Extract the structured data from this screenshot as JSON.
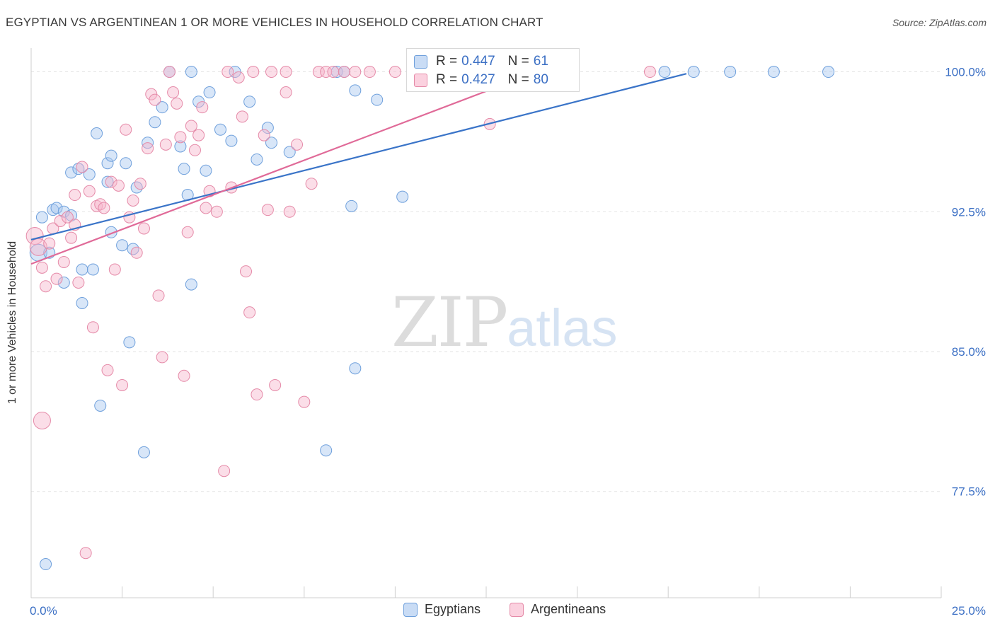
{
  "header": {
    "title": "EGYPTIAN VS ARGENTINEAN 1 OR MORE VEHICLES IN HOUSEHOLD CORRELATION CHART",
    "source": "Source: ZipAtlas.com"
  },
  "watermark": {
    "zip": "ZIP",
    "atlas": "atlas"
  },
  "stats": [
    {
      "r_label": "R =",
      "r_value": "0.447",
      "n_label": "N =",
      "n_value": "61",
      "color": "#a8c8f0"
    },
    {
      "r_label": "R =",
      "r_value": "0.427",
      "n_label": "N =",
      "n_value": "80",
      "color": "#f7b6cb"
    }
  ],
  "legend": [
    {
      "label": "Egyptians",
      "color": "#a8c8f0"
    },
    {
      "label": "Argentineans",
      "color": "#f7b6cb"
    }
  ],
  "chart_data": {
    "type": "scatter",
    "title": "EGYPTIAN VS ARGENTINEAN 1 OR MORE VEHICLES IN HOUSEHOLD CORRELATION CHART",
    "xlabel": "",
    "ylabel": "1 or more Vehicles in Household",
    "xlim": [
      0,
      25
    ],
    "ylim": [
      71.8,
      101.5
    ],
    "x_tick_labels": [
      "0.0%",
      "25.0%"
    ],
    "y_ticks": [
      77.5,
      85.0,
      92.5,
      100.0
    ],
    "y_tick_labels": [
      "77.5%",
      "85.0%",
      "92.5%",
      "100.0%"
    ],
    "grid": true,
    "legend_position": "bottom-center",
    "series": [
      {
        "name": "Egyptians",
        "color": "#a8c8f0",
        "edge": "#6fa0dc",
        "trend": {
          "x": [
            0,
            18
          ],
          "y": [
            91.0,
            99.9
          ],
          "color": "#3a74c8"
        },
        "points": [
          [
            0.2,
            90.3
          ],
          [
            0.3,
            92.2
          ],
          [
            0.6,
            92.6
          ],
          [
            0.7,
            92.7
          ],
          [
            0.9,
            92.5
          ],
          [
            0.5,
            90.3
          ],
          [
            0.9,
            88.7
          ],
          [
            1.1,
            94.6
          ],
          [
            1.3,
            94.8
          ],
          [
            1.6,
            94.5
          ],
          [
            1.8,
            96.7
          ],
          [
            1.4,
            89.4
          ],
          [
            1.4,
            87.6
          ],
          [
            1.7,
            89.4
          ],
          [
            2.1,
            95.1
          ],
          [
            2.2,
            95.5
          ],
          [
            2.1,
            94.1
          ],
          [
            2.6,
            95.1
          ],
          [
            2.2,
            91.4
          ],
          [
            2.5,
            90.7
          ],
          [
            2.8,
            90.5
          ],
          [
            2.9,
            93.8
          ],
          [
            3.2,
            96.2
          ],
          [
            3.4,
            97.3
          ],
          [
            3.6,
            98.1
          ],
          [
            3.8,
            100.0
          ],
          [
            4.1,
            96.0
          ],
          [
            4.2,
            94.8
          ],
          [
            4.3,
            93.4
          ],
          [
            4.4,
            100.0
          ],
          [
            4.6,
            98.4
          ],
          [
            4.8,
            94.7
          ],
          [
            4.9,
            98.9
          ],
          [
            5.2,
            96.9
          ],
          [
            5.5,
            96.3
          ],
          [
            5.6,
            100.0
          ],
          [
            6.0,
            98.4
          ],
          [
            6.2,
            95.3
          ],
          [
            6.5,
            97.0
          ],
          [
            6.6,
            96.2
          ],
          [
            7.1,
            95.7
          ],
          [
            8.4,
            100.0
          ],
          [
            8.8,
            92.8
          ],
          [
            8.9,
            99.0
          ],
          [
            9.5,
            98.5
          ],
          [
            10.2,
            93.3
          ],
          [
            2.7,
            85.5
          ],
          [
            1.9,
            82.1
          ],
          [
            3.1,
            79.6
          ],
          [
            4.4,
            88.6
          ],
          [
            8.1,
            79.7
          ],
          [
            8.9,
            84.1
          ],
          [
            13.7,
            100.0
          ],
          [
            17.4,
            100.0
          ],
          [
            18.2,
            100.0
          ],
          [
            19.2,
            100.0
          ],
          [
            20.4,
            100.0
          ],
          [
            21.9,
            100.0
          ],
          [
            0.4,
            73.6
          ],
          [
            8.6,
            100.0
          ],
          [
            1.1,
            92.3
          ]
        ]
      },
      {
        "name": "Argentineans",
        "color": "#f7b6cb",
        "edge": "#e58aa8",
        "trend": {
          "x": [
            0,
            13.9
          ],
          "y": [
            89.7,
            100.0
          ],
          "color": "#e06a98"
        },
        "points": [
          [
            0.1,
            91.2
          ],
          [
            0.2,
            90.6
          ],
          [
            0.3,
            89.5
          ],
          [
            0.4,
            88.5
          ],
          [
            0.5,
            90.8
          ],
          [
            0.6,
            91.6
          ],
          [
            0.7,
            88.9
          ],
          [
            0.8,
            92.0
          ],
          [
            0.9,
            89.8
          ],
          [
            1.0,
            92.2
          ],
          [
            1.1,
            91.1
          ],
          [
            1.2,
            93.4
          ],
          [
            1.3,
            88.7
          ],
          [
            1.4,
            94.9
          ],
          [
            1.6,
            93.6
          ],
          [
            1.7,
            86.3
          ],
          [
            1.8,
            92.8
          ],
          [
            1.9,
            92.9
          ],
          [
            2.0,
            92.7
          ],
          [
            2.1,
            84.0
          ],
          [
            2.2,
            94.1
          ],
          [
            2.3,
            89.4
          ],
          [
            2.4,
            93.9
          ],
          [
            2.5,
            83.2
          ],
          [
            2.6,
            96.9
          ],
          [
            2.7,
            92.2
          ],
          [
            2.8,
            93.1
          ],
          [
            2.9,
            90.3
          ],
          [
            3.0,
            94.0
          ],
          [
            3.1,
            91.6
          ],
          [
            3.2,
            95.9
          ],
          [
            3.3,
            98.8
          ],
          [
            3.4,
            98.5
          ],
          [
            3.5,
            88.0
          ],
          [
            3.6,
            84.7
          ],
          [
            3.7,
            96.1
          ],
          [
            3.8,
            100.0
          ],
          [
            3.9,
            98.9
          ],
          [
            4.0,
            98.3
          ],
          [
            4.1,
            96.5
          ],
          [
            4.2,
            83.7
          ],
          [
            4.3,
            91.4
          ],
          [
            4.4,
            97.1
          ],
          [
            4.5,
            95.8
          ],
          [
            4.6,
            96.6
          ],
          [
            4.7,
            98.1
          ],
          [
            4.8,
            92.7
          ],
          [
            4.9,
            93.6
          ],
          [
            5.1,
            92.5
          ],
          [
            5.3,
            78.6
          ],
          [
            5.5,
            93.8
          ],
          [
            5.7,
            99.7
          ],
          [
            5.8,
            97.6
          ],
          [
            5.9,
            89.3
          ],
          [
            6.0,
            87.1
          ],
          [
            6.1,
            100.0
          ],
          [
            6.2,
            82.7
          ],
          [
            6.4,
            96.6
          ],
          [
            6.5,
            92.6
          ],
          [
            6.6,
            100.0
          ],
          [
            6.7,
            83.2
          ],
          [
            7.0,
            100.0
          ],
          [
            7.1,
            92.5
          ],
          [
            7.3,
            96.1
          ],
          [
            7.5,
            82.3
          ],
          [
            7.7,
            94.0
          ],
          [
            7.9,
            100.0
          ],
          [
            8.1,
            100.0
          ],
          [
            8.3,
            100.0
          ],
          [
            8.6,
            100.0
          ],
          [
            8.9,
            100.0
          ],
          [
            9.3,
            100.0
          ],
          [
            10.0,
            100.0
          ],
          [
            12.6,
            97.2
          ],
          [
            17.0,
            100.0
          ],
          [
            0.3,
            81.3
          ],
          [
            1.5,
            74.2
          ],
          [
            7.0,
            98.9
          ],
          [
            5.4,
            100.0
          ],
          [
            1.2,
            91.8
          ]
        ]
      }
    ]
  }
}
